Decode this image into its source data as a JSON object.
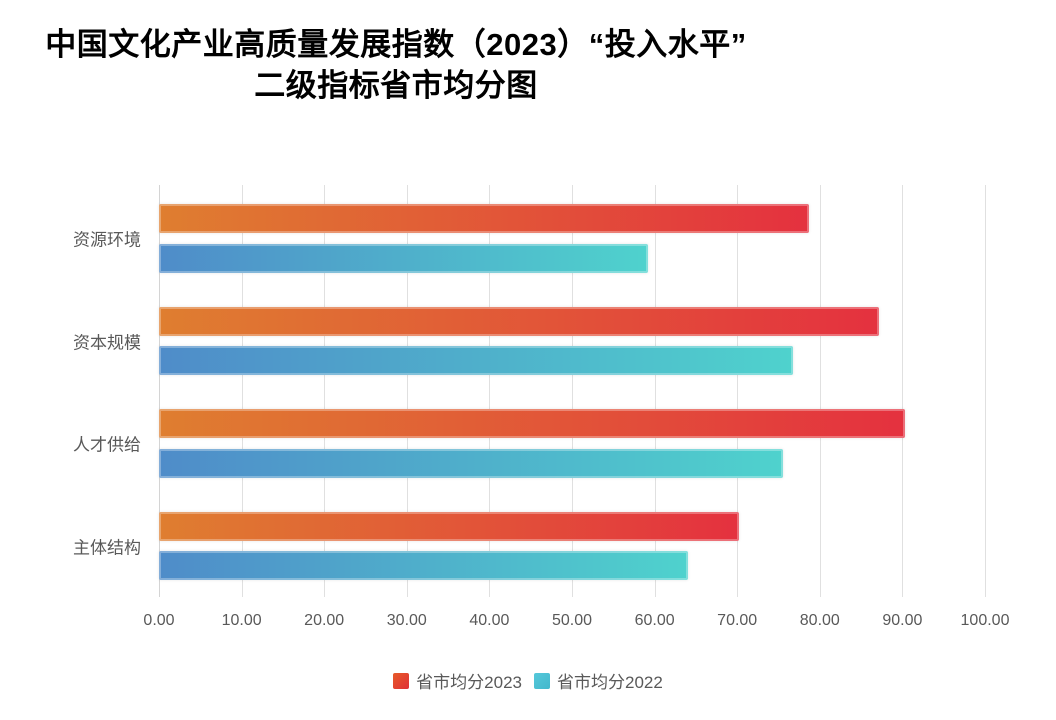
{
  "title": {
    "line1": "中国文化产业高质量发展指数（2023）“投入水平”",
    "line2": "二级指标省市均分图"
  },
  "chart_data": {
    "type": "bar",
    "orientation": "horizontal",
    "title": "中国文化产业高质量发展指数（2023）“投入水平”二级指标省市均分图",
    "categories": [
      "资源环境",
      "资本规模",
      "人才供给",
      "主体结构"
    ],
    "series": [
      {
        "name": "省市均分2023",
        "values": [
          78.7,
          87.2,
          90.3,
          70.2
        ],
        "gradient_start": "#df7e30",
        "gradient_end": "#e4313f",
        "legend_color_start": "#e75a29",
        "legend_color_end": "#df3036"
      },
      {
        "name": "省市均分2022",
        "values": [
          59.2,
          76.7,
          75.5,
          64.0
        ],
        "gradient_start": "#4f8cc9",
        "gradient_end": "#4fd2cd",
        "legend_color_start": "#55c8da",
        "legend_color_end": "#44b8cc"
      }
    ],
    "xlim": [
      0,
      100
    ],
    "x_tick_labels": [
      "0.00",
      "10.00",
      "20.00",
      "30.00",
      "40.00",
      "50.00",
      "60.00",
      "70.00",
      "80.00",
      "90.00",
      "100.00"
    ],
    "grid": true,
    "legend_position": "bottom"
  },
  "colors": {
    "grid": "#e0e0e0",
    "axis_text": "#595959",
    "title_text": "#000000",
    "background": "#ffffff"
  }
}
